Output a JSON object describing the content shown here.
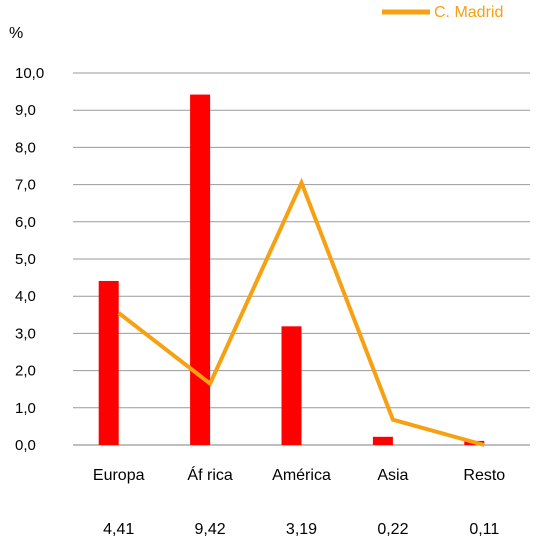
{
  "chart_data": {
    "type": "bar",
    "categories": [
      "Europa",
      "Áf rica",
      "América",
      "Asia",
      "Resto"
    ],
    "series": [
      {
        "values": [
          4.41,
          9.42,
          3.19,
          0.22,
          0.11
        ],
        "color": "#ff0000"
      },
      {
        "name": "C. Madrid",
        "type": "line",
        "values": [
          3.55,
          1.65,
          7.05,
          0.68,
          0.0
        ],
        "color": "#f7a012"
      }
    ],
    "data_labels": [
      "4,41",
      "9,42",
      "3,19",
      "0,22",
      "0,11"
    ],
    "ylabel": "%",
    "ylim": [
      0,
      10
    ],
    "yticks": [
      0,
      1,
      2,
      3,
      4,
      5,
      6,
      7,
      8,
      9,
      10
    ],
    "ytick_labels": [
      "0,0",
      "1,0",
      "2,0",
      "3,0",
      "4,0",
      "5,0",
      "6,0",
      "7,0",
      "8,0",
      "9,0",
      "10,0"
    ],
    "grid": true,
    "legend_position": "top-right"
  }
}
